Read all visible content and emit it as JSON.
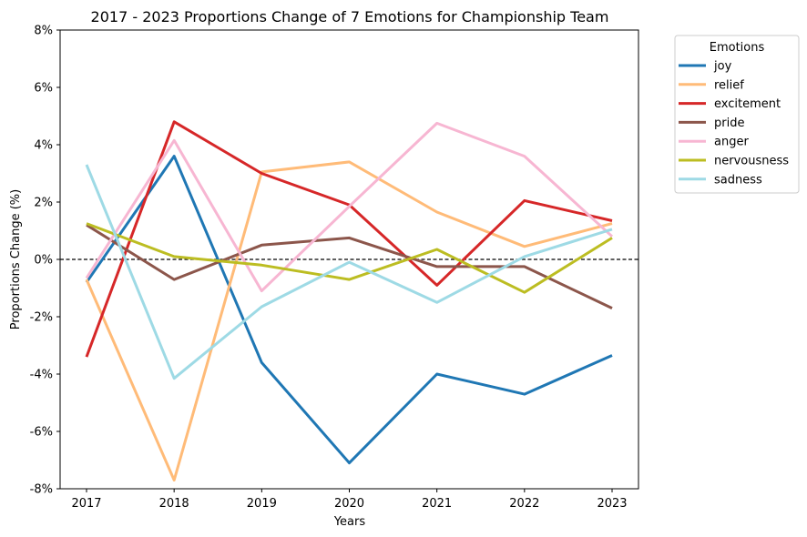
{
  "chart_data": {
    "type": "line",
    "title": "2017 - 2023 Proportions Change of 7 Emotions for Championship Team",
    "xlabel": "Years",
    "ylabel": "Proportions Change (%)",
    "categories": [
      "2017",
      "2018",
      "2019",
      "2020",
      "2021",
      "2022",
      "2023"
    ],
    "ylim": [
      -8,
      8
    ],
    "yticks": [
      -8,
      -6,
      -4,
      -2,
      0,
      2,
      4,
      6,
      8
    ],
    "ytick_labels": [
      "-8%",
      "-6%",
      "-4%",
      "-2%",
      "0%",
      "2%",
      "4%",
      "6%",
      "8%"
    ],
    "zero_line": true,
    "legend": {
      "title": "Emotions",
      "position": "outside-top-right"
    },
    "series": [
      {
        "name": "joy",
        "color": "#1f77b4",
        "values": [
          -0.8,
          3.6,
          -3.6,
          -7.1,
          -4.0,
          -4.7,
          -3.35
        ]
      },
      {
        "name": "relief",
        "color": "#ffbb78",
        "values": [
          -0.7,
          -7.7,
          3.05,
          3.4,
          1.65,
          0.45,
          1.25
        ]
      },
      {
        "name": "excitement",
        "color": "#d62728",
        "values": [
          -3.4,
          4.8,
          3.0,
          1.9,
          -0.9,
          2.05,
          1.35
        ]
      },
      {
        "name": "pride",
        "color": "#8c564b",
        "values": [
          1.2,
          -0.7,
          0.5,
          0.75,
          -0.25,
          -0.25,
          -1.7
        ]
      },
      {
        "name": "anger",
        "color": "#f7b6d2",
        "values": [
          -0.65,
          4.15,
          -1.1,
          1.85,
          4.75,
          3.6,
          0.8
        ]
      },
      {
        "name": "nervousness",
        "color": "#bcbd22",
        "values": [
          1.25,
          0.1,
          -0.2,
          -0.7,
          0.35,
          -1.15,
          0.75
        ]
      },
      {
        "name": "sadness",
        "color": "#9edae5",
        "values": [
          3.3,
          -4.15,
          -1.65,
          -0.1,
          -1.5,
          0.1,
          1.05
        ]
      }
    ]
  }
}
